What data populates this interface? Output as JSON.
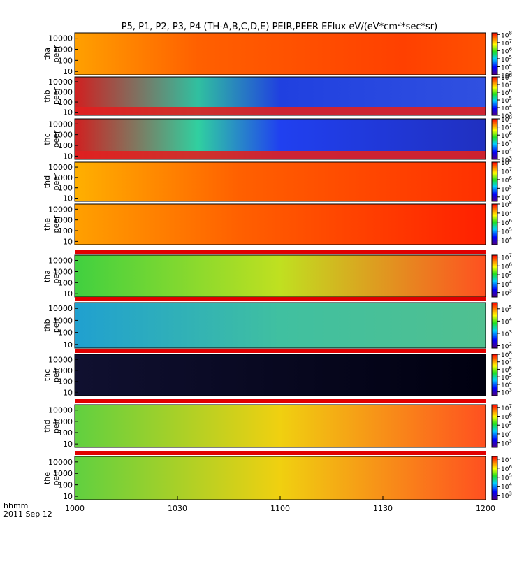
{
  "title": "P5, P1, P2, P3, P4 (TH-A,B,C,D,E) PEIR,PEER EFlux eV/(eV*cm",
  "title_sup": "2",
  "title_tail": "*sec*sr)",
  "chart_data": {
    "type": "heatmap",
    "x_ticks": [
      "1000",
      "1030",
      "1100",
      "1130",
      "1200"
    ],
    "x_tick_hours": [
      10.0,
      10.5,
      11.0,
      11.5,
      12.0
    ],
    "x_range_hours": [
      10.0,
      12.0
    ],
    "footer_label": "hhmm",
    "footer_date": "2011 Sep 12",
    "y_ticks": [
      "10",
      "100",
      "1000",
      "10000"
    ],
    "y_tick_values": [
      10,
      100,
      1000,
      10000
    ],
    "y_range": [
      5,
      30000
    ],
    "y_scale": "log",
    "panels": [
      {
        "label": "tha",
        "sublabel": "peer",
        "cbar_ticks": [
          "10",
          "10",
          "10",
          "10",
          "10",
          "10"
        ],
        "cbar_exps": [
          "3",
          "4",
          "5",
          "6",
          "7",
          "8"
        ],
        "cbar_exp_values": [
          3,
          4,
          5,
          6,
          7,
          8
        ],
        "cbar_range": [
          3,
          8.2
        ]
      },
      {
        "label": "thb",
        "sublabel": "peer",
        "cbar_ticks": [
          "10",
          "10",
          "10",
          "10",
          "10",
          "10"
        ],
        "cbar_exps": [
          "3",
          "4",
          "5",
          "6",
          "7",
          "8"
        ],
        "cbar_exp_values": [
          3,
          4,
          5,
          6,
          7,
          8
        ],
        "cbar_range": [
          3,
          8
        ]
      },
      {
        "label": "thc",
        "sublabel": "peer",
        "cbar_ticks": [
          "10",
          "10",
          "10",
          "10",
          "10",
          "10"
        ],
        "cbar_exps": [
          "3",
          "4",
          "5",
          "6",
          "7",
          "8"
        ],
        "cbar_exp_values": [
          3,
          4,
          5,
          6,
          7,
          8
        ],
        "cbar_range": [
          3,
          8
        ]
      },
      {
        "label": "thd",
        "sublabel": "peer",
        "cbar_ticks": [
          "10",
          "10",
          "10",
          "10",
          "10"
        ],
        "cbar_exps": [
          "4",
          "5",
          "6",
          "7",
          "8"
        ],
        "cbar_exp_values": [
          4,
          5,
          6,
          7,
          8
        ],
        "cbar_range": [
          3.5,
          8
        ]
      },
      {
        "label": "the",
        "sublabel": "peer",
        "cbar_ticks": [
          "10",
          "10",
          "10",
          "10",
          "10"
        ],
        "cbar_exps": [
          "4",
          "5",
          "6",
          "7",
          "8"
        ],
        "cbar_exp_values": [
          4,
          5,
          6,
          7,
          8
        ],
        "cbar_range": [
          3.5,
          8
        ]
      },
      {
        "label": "tha",
        "sublabel": "peir",
        "cbar_ticks": [
          "10",
          "10",
          "10",
          "10",
          "10"
        ],
        "cbar_exps": [
          "3",
          "4",
          "5",
          "6",
          "7"
        ],
        "cbar_exp_values": [
          3,
          4,
          5,
          6,
          7
        ],
        "cbar_range": [
          2.5,
          7.2
        ]
      },
      {
        "label": "thb",
        "sublabel": "peir",
        "cbar_ticks": [
          "10",
          "10",
          "10",
          "10"
        ],
        "cbar_exps": [
          "2",
          "3",
          "4",
          "5"
        ],
        "cbar_exp_values": [
          2,
          3,
          4,
          5
        ],
        "cbar_range": [
          1.8,
          5.5
        ]
      },
      {
        "label": "thc",
        "sublabel": "peir",
        "cbar_ticks": [
          "10",
          "10",
          "10",
          "10",
          "10",
          "10"
        ],
        "cbar_exps": [
          "3",
          "4",
          "5",
          "6",
          "7",
          "8"
        ],
        "cbar_exp_values": [
          3,
          4,
          5,
          6,
          7,
          8
        ],
        "cbar_range": [
          2.5,
          8
        ]
      },
      {
        "label": "thd",
        "sublabel": "peir",
        "cbar_ticks": [
          "10",
          "10",
          "10",
          "10",
          "10"
        ],
        "cbar_exps": [
          "3",
          "4",
          "5",
          "6",
          "7"
        ],
        "cbar_exp_values": [
          3,
          4,
          5,
          6,
          7
        ],
        "cbar_range": [
          2.5,
          7.3
        ]
      },
      {
        "label": "the",
        "sublabel": "peir",
        "cbar_ticks": [
          "10",
          "10",
          "10",
          "10",
          "10"
        ],
        "cbar_exps": [
          "3",
          "4",
          "5",
          "6",
          "7"
        ],
        "cbar_exp_values": [
          3,
          4,
          5,
          6,
          7
        ],
        "cbar_range": [
          2.5,
          7.3
        ]
      }
    ]
  }
}
